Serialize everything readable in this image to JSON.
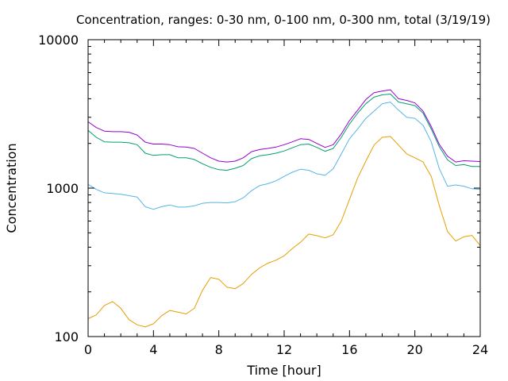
{
  "chart_data": {
    "type": "line",
    "title": "Concentration, ranges: 0-30 nm, 0-100 nm, 0-300 nm, total (3/19/19)",
    "xlabel": "Time [hour]",
    "ylabel": "Concentration",
    "xlim": [
      0,
      24
    ],
    "ylim": [
      100,
      10000
    ],
    "yscale": "log",
    "grid": false,
    "x_ticks": [
      0,
      4,
      8,
      12,
      16,
      20,
      24
    ],
    "x_tick_labels": [
      "0",
      "4",
      "8",
      "12",
      "16",
      "20",
      "24"
    ],
    "y_ticks": [
      100,
      1000,
      10000
    ],
    "y_tick_labels": [
      "100",
      "1000",
      "10000"
    ],
    "series": [
      {
        "color": "#e69f00",
        "x": [
          0,
          0.5,
          1,
          1.5,
          2,
          2.5,
          3,
          3.5,
          4,
          4.5,
          5,
          5.5,
          6,
          6.5,
          7,
          7.5,
          8,
          8.5,
          9,
          9.5,
          10,
          10.5,
          11,
          11.5,
          12,
          12.5,
          13,
          13.5,
          14,
          14.5,
          15,
          15.5,
          16,
          16.5,
          17,
          17.5,
          18,
          18.5,
          19,
          19.5,
          20,
          20.5,
          21,
          21.5,
          22,
          22.5,
          23,
          23.5,
          24
        ],
        "y": [
          132,
          140,
          162,
          172,
          155,
          130,
          120,
          116,
          122,
          138,
          150,
          146,
          142,
          155,
          205,
          250,
          243,
          215,
          210,
          228,
          262,
          290,
          312,
          327,
          350,
          392,
          432,
          490,
          478,
          462,
          485,
          600,
          840,
          1170,
          1520,
          1950,
          2200,
          2230,
          1950,
          1700,
          1600,
          1500,
          1200,
          760,
          510,
          440,
          470,
          480,
          410
        ]
      },
      {
        "color": "#56b4e9",
        "x": [
          0,
          0.5,
          1,
          1.5,
          2,
          2.5,
          3,
          3.5,
          4,
          4.5,
          5,
          5.5,
          6,
          6.5,
          7,
          7.5,
          8,
          8.5,
          9,
          9.5,
          10,
          10.5,
          11,
          11.5,
          12,
          12.5,
          13,
          13.5,
          14,
          14.5,
          15,
          15.5,
          16,
          16.5,
          17,
          17.5,
          18,
          18.5,
          19,
          19.5,
          20,
          20.5,
          21,
          21.5,
          22,
          22.5,
          23,
          23.5,
          24
        ],
        "y": [
          1060,
          980,
          930,
          920,
          910,
          890,
          870,
          750,
          720,
          750,
          770,
          745,
          745,
          760,
          790,
          800,
          800,
          795,
          810,
          860,
          960,
          1040,
          1070,
          1120,
          1200,
          1280,
          1340,
          1320,
          1250,
          1220,
          1350,
          1700,
          2150,
          2500,
          2950,
          3300,
          3700,
          3800,
          3350,
          3000,
          2950,
          2650,
          2050,
          1350,
          1030,
          1050,
          1030,
          990,
          980
        ]
      },
      {
        "color": "#009e73",
        "x": [
          0,
          0.5,
          1,
          1.5,
          2,
          2.5,
          3,
          3.5,
          4,
          4.5,
          5,
          5.5,
          6,
          6.5,
          7,
          7.5,
          8,
          8.5,
          9,
          9.5,
          10,
          10.5,
          11,
          11.5,
          12,
          12.5,
          13,
          13.5,
          14,
          14.5,
          15,
          15.5,
          16,
          16.5,
          17,
          17.5,
          18,
          18.5,
          19,
          19.5,
          20,
          20.5,
          21,
          21.5,
          22,
          22.5,
          23,
          23.5,
          24
        ],
        "y": [
          2450,
          2200,
          2050,
          2040,
          2040,
          2020,
          1960,
          1720,
          1660,
          1680,
          1680,
          1600,
          1600,
          1560,
          1460,
          1380,
          1330,
          1320,
          1360,
          1420,
          1580,
          1650,
          1680,
          1720,
          1780,
          1870,
          1960,
          1980,
          1880,
          1770,
          1850,
          2200,
          2700,
          3200,
          3700,
          4100,
          4250,
          4300,
          3800,
          3700,
          3600,
          3200,
          2500,
          1900,
          1550,
          1420,
          1440,
          1400,
          1400
        ]
      },
      {
        "color": "#9400d3",
        "x": [
          0,
          0.5,
          1,
          1.5,
          2,
          2.5,
          3,
          3.5,
          4,
          4.5,
          5,
          5.5,
          6,
          6.5,
          7,
          7.5,
          8,
          8.5,
          9,
          9.5,
          10,
          10.5,
          11,
          11.5,
          12,
          12.5,
          13,
          13.5,
          14,
          14.5,
          15,
          15.5,
          16,
          16.5,
          17,
          17.5,
          18,
          18.5,
          19,
          19.5,
          20,
          20.5,
          21,
          21.5,
          22,
          22.5,
          23,
          23.5,
          24
        ],
        "y": [
          2800,
          2560,
          2420,
          2400,
          2400,
          2380,
          2280,
          2040,
          1980,
          1980,
          1960,
          1900,
          1890,
          1850,
          1720,
          1600,
          1520,
          1500,
          1520,
          1600,
          1760,
          1820,
          1850,
          1890,
          1960,
          2050,
          2150,
          2130,
          2000,
          1880,
          1960,
          2320,
          2850,
          3350,
          3950,
          4400,
          4500,
          4600,
          4000,
          3900,
          3750,
          3300,
          2600,
          1970,
          1640,
          1500,
          1530,
          1520,
          1510
        ]
      }
    ]
  }
}
